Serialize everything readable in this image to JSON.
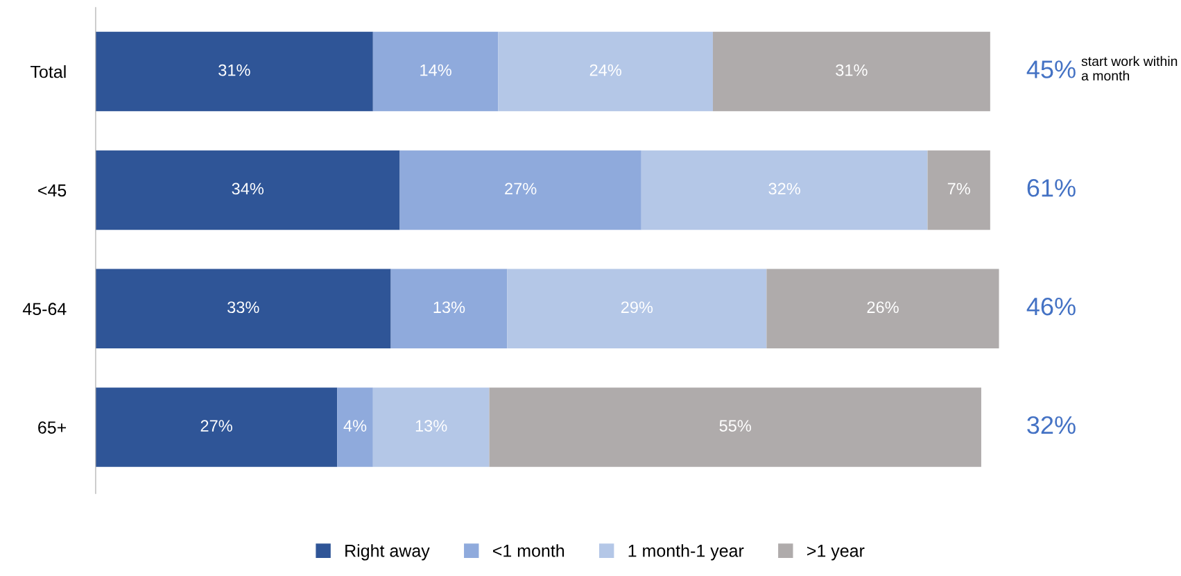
{
  "chart_data": {
    "type": "bar",
    "orientation": "horizontal",
    "stacked": true,
    "legend": "bottom",
    "grid": false,
    "categories": [
      "Total",
      "<45",
      "45-64",
      "65+"
    ],
    "series": [
      {
        "name": "Right away",
        "color": "#2f5597",
        "values": [
          31,
          34,
          33,
          27
        ],
        "value_labels": [
          "31%",
          "34%",
          "33%",
          "27%"
        ]
      },
      {
        "name": "<1 month",
        "color": "#8faadc",
        "values": [
          14,
          27,
          13,
          4
        ],
        "value_labels": [
          "14%",
          "27%",
          "13%",
          "4%"
        ]
      },
      {
        "name": "1 month-1 year",
        "color": "#b4c7e7",
        "values": [
          24,
          32,
          29,
          13
        ],
        "value_labels": [
          "24%",
          "32%",
          "29%",
          "13%"
        ]
      },
      {
        "name": ">1 year",
        "color": "#afabab",
        "values": [
          31,
          7,
          26,
          55
        ],
        "value_labels": [
          "31%",
          "7%",
          "26%",
          "55%"
        ]
      }
    ],
    "annotations": [
      "45%",
      "start work within a month",
      "61%",
      "46%",
      "32%"
    ]
  }
}
